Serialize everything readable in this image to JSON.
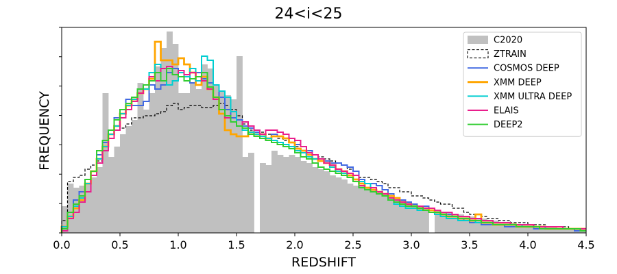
{
  "chart_data": {
    "type": "histogram",
    "title": "24<i<25",
    "xlabel": "REDSHIFT",
    "ylabel": "FREQUENCY",
    "xlim": [
      0,
      4.5
    ],
    "ylim": [
      0,
      1.0
    ],
    "x_ticks": [
      "0.0",
      "0.5",
      "1.0",
      "1.5",
      "2.0",
      "2.5",
      "3.0",
      "3.5",
      "4.0",
      "4.5"
    ],
    "y_tick_labels_shown": false,
    "legend_position": "top-right",
    "bin_width": 0.05,
    "filled_histogram": {
      "name": "C2020",
      "color": "#c0c0c0",
      "x": [
        0.0,
        0.05,
        0.1,
        0.15,
        0.2,
        0.25,
        0.3,
        0.35,
        0.4,
        0.45,
        0.5,
        0.55,
        0.6,
        0.65,
        0.7,
        0.75,
        0.8,
        0.85,
        0.9,
        0.95,
        1.0,
        1.05,
        1.1,
        1.15,
        1.2,
        1.25,
        1.3,
        1.35,
        1.4,
        1.45,
        1.5,
        1.55,
        1.6,
        1.65,
        1.7,
        1.75,
        1.8,
        1.85,
        1.9,
        1.95,
        2.0,
        2.05,
        2.1,
        2.15,
        2.2,
        2.25,
        2.3,
        2.35,
        2.4,
        2.45,
        2.5,
        2.55,
        2.6,
        2.65,
        2.7,
        2.75,
        2.8,
        2.85,
        2.9,
        2.95,
        3.0,
        3.05,
        3.1,
        3.15,
        3.2,
        3.25,
        3.3,
        3.35,
        3.4,
        3.45,
        3.5,
        3.55,
        3.6,
        3.65,
        3.7,
        3.75,
        3.8,
        3.85,
        3.9,
        3.95,
        4.0,
        4.05,
        4.1,
        4.15,
        4.2,
        4.25,
        4.3,
        4.35,
        4.4,
        4.45
      ],
      "values": [
        0.13,
        0.24,
        0.22,
        0.23,
        0.24,
        0.27,
        0.32,
        0.68,
        0.37,
        0.42,
        0.48,
        0.52,
        0.55,
        0.73,
        0.6,
        0.68,
        0.81,
        0.9,
        0.98,
        0.92,
        0.68,
        0.68,
        0.73,
        0.7,
        0.82,
        0.8,
        0.72,
        0.69,
        0.67,
        0.65,
        0.86,
        0.37,
        0.39,
        0.0,
        0.34,
        0.33,
        0.4,
        0.38,
        0.37,
        0.38,
        0.37,
        0.35,
        0.34,
        0.32,
        0.31,
        0.3,
        0.28,
        0.27,
        0.26,
        0.24,
        0.23,
        0.23,
        0.22,
        0.21,
        0.2,
        0.19,
        0.18,
        0.17,
        0.16,
        0.15,
        0.14,
        0.13,
        0.12,
        0.0,
        0.11,
        0.1,
        0.1,
        0.09,
        0.09,
        0.08,
        0.08,
        0.07,
        0.07,
        0.06,
        0.06,
        0.05,
        0.05,
        0.05,
        0.04,
        0.04,
        0.04,
        0.03,
        0.03,
        0.03,
        0.03,
        0.02,
        0.02,
        0.02,
        0.02,
        0.02
      ]
    },
    "series": [
      {
        "name": "ZTRAIN",
        "color": "#000000",
        "dashed": true,
        "values": [
          0.06,
          0.25,
          0.27,
          0.28,
          0.31,
          0.33,
          0.35,
          0.45,
          0.48,
          0.5,
          0.51,
          0.53,
          0.56,
          0.56,
          0.57,
          0.57,
          0.58,
          0.59,
          0.62,
          0.63,
          0.6,
          0.61,
          0.62,
          0.62,
          0.61,
          0.61,
          0.62,
          0.63,
          0.62,
          0.6,
          0.57,
          0.53,
          0.5,
          0.5,
          0.49,
          0.48,
          0.47,
          0.46,
          0.45,
          0.44,
          0.42,
          0.42,
          0.4,
          0.38,
          0.37,
          0.36,
          0.35,
          0.34,
          0.33,
          0.31,
          0.3,
          0.27,
          0.27,
          0.26,
          0.25,
          0.24,
          0.22,
          0.22,
          0.2,
          0.2,
          0.18,
          0.18,
          0.17,
          0.16,
          0.15,
          0.14,
          0.14,
          0.12,
          0.12,
          0.1,
          0.09,
          0.09,
          0.08,
          0.07,
          0.07,
          0.06,
          0.06,
          0.05,
          0.05,
          0.05,
          0.04,
          0.04,
          0.04,
          0.03,
          0.03,
          0.03,
          0.03,
          0.02,
          0.02,
          0.02
        ]
      },
      {
        "name": "COSMOS DEEP",
        "color": "#4169e1",
        "dashed": false,
        "values": [
          0.02,
          0.1,
          0.16,
          0.2,
          0.24,
          0.3,
          0.38,
          0.44,
          0.5,
          0.56,
          0.6,
          0.65,
          0.62,
          0.62,
          0.64,
          0.72,
          0.7,
          0.72,
          0.78,
          0.8,
          0.78,
          0.76,
          0.73,
          0.78,
          0.75,
          0.73,
          0.72,
          0.66,
          0.6,
          0.56,
          0.55,
          0.52,
          0.51,
          0.49,
          0.47,
          0.46,
          0.48,
          0.47,
          0.46,
          0.46,
          0.43,
          0.42,
          0.4,
          0.38,
          0.36,
          0.35,
          0.34,
          0.34,
          0.33,
          0.32,
          0.3,
          0.26,
          0.24,
          0.24,
          0.23,
          0.21,
          0.19,
          0.17,
          0.16,
          0.15,
          0.14,
          0.13,
          0.13,
          0.12,
          0.11,
          0.1,
          0.09,
          0.08,
          0.07,
          0.06,
          0.05,
          0.05,
          0.04,
          0.04,
          0.04,
          0.04,
          0.03,
          0.03,
          0.03,
          0.03,
          0.03,
          0.02,
          0.02,
          0.02,
          0.02,
          0.02,
          0.02,
          0.02,
          0.01,
          0.01
        ]
      },
      {
        "name": "XMM DEEP",
        "color": "#ffa500",
        "dashed": false,
        "values": [
          0.03,
          0.08,
          0.12,
          0.16,
          0.24,
          0.3,
          0.36,
          0.42,
          0.48,
          0.52,
          0.58,
          0.62,
          0.65,
          0.68,
          0.7,
          0.75,
          0.93,
          0.84,
          0.84,
          0.82,
          0.85,
          0.82,
          0.78,
          0.72,
          0.76,
          0.7,
          0.66,
          0.58,
          0.5,
          0.48,
          0.47,
          0.47,
          0.49,
          0.48,
          0.48,
          0.46,
          0.47,
          0.47,
          0.46,
          0.44,
          0.41,
          0.4,
          0.38,
          0.36,
          0.35,
          0.34,
          0.33,
          0.31,
          0.3,
          0.28,
          0.26,
          0.24,
          0.22,
          0.21,
          0.2,
          0.19,
          0.18,
          0.17,
          0.15,
          0.14,
          0.13,
          0.12,
          0.12,
          0.11,
          0.1,
          0.09,
          0.08,
          0.08,
          0.07,
          0.07,
          0.06,
          0.09,
          0.05,
          0.05,
          0.04,
          0.04,
          0.04,
          0.04,
          0.03,
          0.03,
          0.03,
          0.03,
          0.03,
          0.02,
          0.02,
          0.02,
          0.02,
          0.02,
          0.02,
          0.02
        ]
      },
      {
        "name": "XMM ULTRA DEEP",
        "color": "#00ced1",
        "dashed": false,
        "values": [
          0.03,
          0.08,
          0.13,
          0.17,
          0.24,
          0.3,
          0.36,
          0.42,
          0.48,
          0.52,
          0.58,
          0.62,
          0.65,
          0.68,
          0.7,
          0.78,
          0.82,
          0.8,
          0.72,
          0.74,
          0.78,
          0.76,
          0.8,
          0.74,
          0.86,
          0.84,
          0.72,
          0.69,
          0.66,
          0.59,
          0.52,
          0.5,
          0.49,
          0.48,
          0.47,
          0.46,
          0.45,
          0.44,
          0.43,
          0.42,
          0.4,
          0.39,
          0.37,
          0.36,
          0.36,
          0.34,
          0.32,
          0.3,
          0.29,
          0.27,
          0.25,
          0.25,
          0.24,
          0.22,
          0.2,
          0.18,
          0.16,
          0.14,
          0.13,
          0.12,
          0.12,
          0.11,
          0.11,
          0.1,
          0.09,
          0.08,
          0.07,
          0.07,
          0.06,
          0.06,
          0.06,
          0.05,
          0.05,
          0.05,
          0.04,
          0.04,
          0.04,
          0.04,
          0.04,
          0.03,
          0.03,
          0.03,
          0.03,
          0.02,
          0.02,
          0.02,
          0.02,
          0.02,
          0.02,
          0.02
        ]
      },
      {
        "name": "ELAIS",
        "color": "#e91e8c",
        "dashed": false,
        "values": [
          0.01,
          0.07,
          0.1,
          0.15,
          0.2,
          0.28,
          0.34,
          0.4,
          0.46,
          0.5,
          0.56,
          0.6,
          0.64,
          0.68,
          0.72,
          0.76,
          0.74,
          0.8,
          0.81,
          0.77,
          0.79,
          0.77,
          0.78,
          0.76,
          0.74,
          0.7,
          0.65,
          0.6,
          0.56,
          0.54,
          0.52,
          0.54,
          0.52,
          0.5,
          0.48,
          0.5,
          0.5,
          0.49,
          0.48,
          0.46,
          0.45,
          0.42,
          0.39,
          0.38,
          0.36,
          0.34,
          0.33,
          0.31,
          0.3,
          0.29,
          0.28,
          0.23,
          0.21,
          0.22,
          0.2,
          0.19,
          0.17,
          0.16,
          0.15,
          0.14,
          0.13,
          0.13,
          0.12,
          0.12,
          0.11,
          0.1,
          0.1,
          0.09,
          0.08,
          0.08,
          0.07,
          0.07,
          0.06,
          0.06,
          0.05,
          0.05,
          0.05,
          0.04,
          0.04,
          0.04,
          0.04,
          0.03,
          0.03,
          0.03,
          0.03,
          0.03,
          0.02,
          0.02,
          0.02,
          0.02
        ]
      },
      {
        "name": "DEEP2",
        "color": "#32cd32",
        "dashed": false,
        "values": [
          0.02,
          0.1,
          0.14,
          0.18,
          0.26,
          0.3,
          0.4,
          0.45,
          0.5,
          0.55,
          0.6,
          0.63,
          0.66,
          0.7,
          0.72,
          0.74,
          0.78,
          0.74,
          0.8,
          0.77,
          0.76,
          0.74,
          0.75,
          0.76,
          0.78,
          0.71,
          0.66,
          0.6,
          0.57,
          0.54,
          0.52,
          0.51,
          0.48,
          0.47,
          0.46,
          0.45,
          0.44,
          0.43,
          0.42,
          0.41,
          0.39,
          0.37,
          0.36,
          0.34,
          0.32,
          0.31,
          0.3,
          0.29,
          0.28,
          0.27,
          0.25,
          0.22,
          0.21,
          0.2,
          0.19,
          0.18,
          0.16,
          0.15,
          0.14,
          0.13,
          0.13,
          0.12,
          0.11,
          0.1,
          0.1,
          0.09,
          0.08,
          0.08,
          0.07,
          0.07,
          0.06,
          0.06,
          0.05,
          0.05,
          0.04,
          0.04,
          0.04,
          0.04,
          0.03,
          0.03,
          0.03,
          0.03,
          0.02,
          0.02,
          0.02,
          0.02,
          0.02,
          0.02,
          0.02,
          0.01
        ]
      }
    ]
  }
}
